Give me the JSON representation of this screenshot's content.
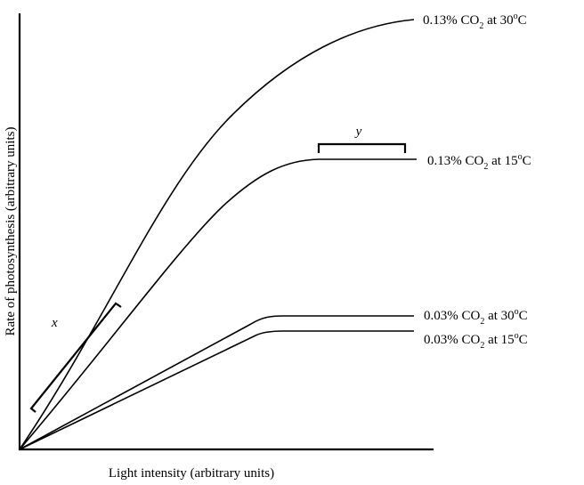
{
  "axes": {
    "y_label": "Rate of photosynthesis (arbitrary units)",
    "x_label": "Light intensity (arbitrary units)"
  },
  "curves": [
    {
      "percent": "0.13% CO",
      "sub": "2",
      "at": " at 30",
      "sup": "o",
      "unit": "C"
    },
    {
      "percent": "0.13% CO",
      "sub": "2",
      "at": " at 15",
      "sup": "o",
      "unit": "C"
    },
    {
      "percent": "0.03% CO",
      "sub": "2",
      "at": " at 30",
      "sup": "o",
      "unit": "C"
    },
    {
      "percent": "0.03% CO",
      "sub": "2",
      "at": " at 15",
      "sup": "o",
      "unit": "C"
    }
  ],
  "brackets": {
    "x": "x",
    "y": "y"
  }
}
